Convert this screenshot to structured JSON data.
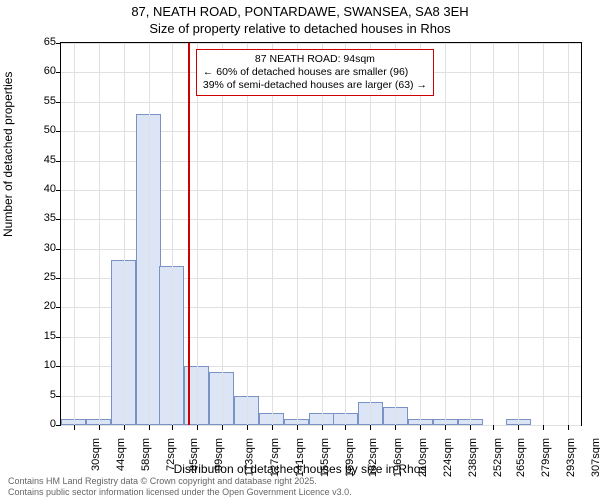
{
  "title_line1": "87, NEATH ROAD, PONTARDAWE, SWANSEA, SA8 3EH",
  "title_line2": "Size of property relative to detached houses in Rhos",
  "chart": {
    "type": "histogram",
    "ylabel": "Number of detached properties",
    "xlabel": "Distribution of detached houses by size in Rhos",
    "ylim": [
      0,
      65
    ],
    "ytick_step": 5,
    "yticks": [
      0,
      5,
      10,
      15,
      20,
      25,
      30,
      35,
      40,
      45,
      50,
      55,
      60,
      65
    ],
    "xtick_labels": [
      "30sqm",
      "44sqm",
      "58sqm",
      "72sqm",
      "85sqm",
      "99sqm",
      "113sqm",
      "127sqm",
      "141sqm",
      "155sqm",
      "169sqm",
      "182sqm",
      "196sqm",
      "210sqm",
      "224sqm",
      "238sqm",
      "252sqm",
      "265sqm",
      "279sqm",
      "293sqm",
      "307sqm"
    ],
    "bars": [
      {
        "x": 30,
        "h": 1
      },
      {
        "x": 44,
        "h": 1
      },
      {
        "x": 58,
        "h": 28
      },
      {
        "x": 72,
        "h": 53
      },
      {
        "x": 85,
        "h": 27
      },
      {
        "x": 99,
        "h": 10
      },
      {
        "x": 113,
        "h": 9
      },
      {
        "x": 127,
        "h": 5
      },
      {
        "x": 141,
        "h": 2
      },
      {
        "x": 155,
        "h": 1
      },
      {
        "x": 169,
        "h": 2
      },
      {
        "x": 182,
        "h": 2
      },
      {
        "x": 196,
        "h": 4
      },
      {
        "x": 210,
        "h": 3
      },
      {
        "x": 224,
        "h": 1
      },
      {
        "x": 238,
        "h": 1
      },
      {
        "x": 252,
        "h": 1
      },
      {
        "x": 265,
        "h": 0
      },
      {
        "x": 279,
        "h": 1
      },
      {
        "x": 293,
        "h": 0
      },
      {
        "x": 307,
        "h": 0
      }
    ],
    "bar_color": "#dce5f5",
    "bar_border_color": "#7a93c4",
    "background_color": "#ffffff",
    "grid_color": "#e0e0e0",
    "reference_line_x": 94,
    "reference_line_color": "#d00000",
    "annotation": {
      "line1": "87 NEATH ROAD: 94sqm",
      "line2": "← 60% of detached houses are smaller (96)",
      "line3": "39% of semi-detached houses are larger (63) →",
      "border_color": "#d00000"
    },
    "x_domain": [
      23,
      314
    ]
  },
  "footer_line1": "Contains HM Land Registry data © Crown copyright and database right 2025.",
  "footer_line2": "Contains public sector information licensed under the Open Government Licence v3.0."
}
